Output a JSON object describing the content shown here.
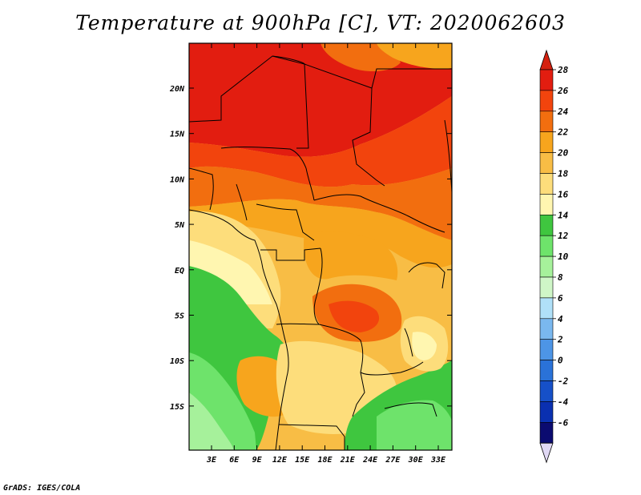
{
  "title": "Temperature at 900hPa [C], VT: 2020062603",
  "credit": "GrADS: IGES/COLA",
  "map": {
    "lat_labels": [
      "20N",
      "15N",
      "10N",
      "5N",
      "EQ",
      "5S",
      "10S",
      "15S"
    ],
    "lon_labels": [
      "3E",
      "6E",
      "9E",
      "12E",
      "15E",
      "18E",
      "21E",
      "24E",
      "27E",
      "30E",
      "33E"
    ]
  },
  "colorbar": {
    "labels": [
      "28",
      "26",
      "24",
      "22",
      "20",
      "18",
      "16",
      "14",
      "12",
      "10",
      "8",
      "6",
      "4",
      "2",
      "0",
      "-2",
      "-4",
      "-6"
    ],
    "colors": [
      "#e21d10",
      "#f2440d",
      "#f26e0f",
      "#f7a51d",
      "#f8bd45",
      "#fddd7b",
      "#fff6b0",
      "#3fc63f",
      "#6ee36b",
      "#a6f19b",
      "#cff6c7",
      "#b0e0f8",
      "#7ab8ef",
      "#4d95e6",
      "#2a72d8",
      "#1650c8",
      "#0a30b0",
      "#0b0b70"
    ],
    "top_arrow_color": "#d4210f",
    "bottom_arrow_color": "#e0d8f4"
  }
}
